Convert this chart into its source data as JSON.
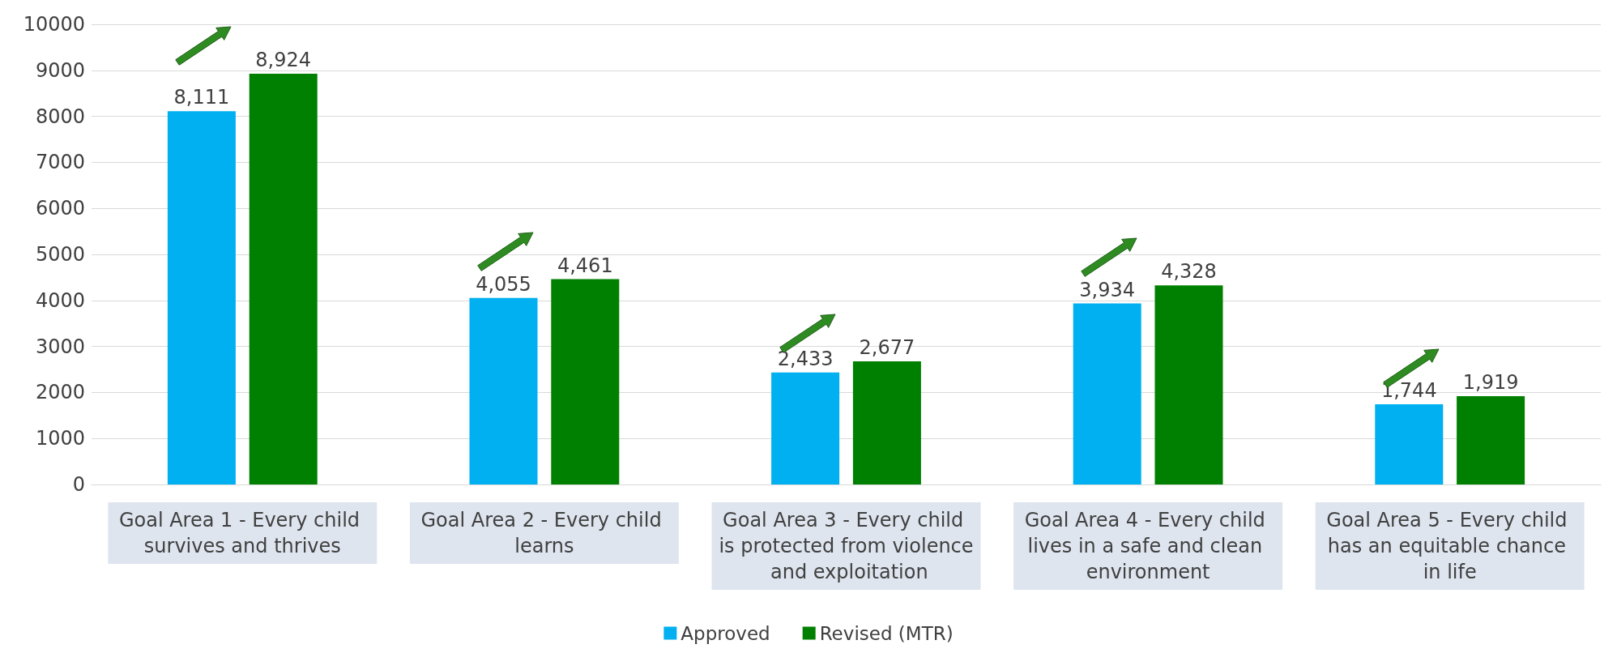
{
  "chart_data": {
    "type": "bar",
    "categories": [
      "Goal Area 1 - Every child survives and thrives",
      "Goal Area 2 - Every child learns",
      "Goal Area 3 - Every child is protected from violence and exploitation",
      "Goal Area 4 - Every child lives in a safe and clean environment",
      "Goal Area 5 - Every child has an equitable chance in life"
    ],
    "series": [
      {
        "name": "Approved",
        "color": "#00b0f0",
        "values": [
          8111,
          4055,
          2433,
          3934,
          1744
        ],
        "value_labels": [
          "8,111",
          "4,055",
          "2,433",
          "3,934",
          "1,744"
        ]
      },
      {
        "name": "Revised (MTR)",
        "color": "#008000",
        "values": [
          8924,
          4461,
          2677,
          4328,
          1919
        ],
        "value_labels": [
          "8,924",
          "4,461",
          "2,677",
          "4,328",
          "1,919"
        ]
      }
    ],
    "ylim": [
      0,
      10000
    ],
    "yticks": [
      0,
      1000,
      2000,
      3000,
      4000,
      5000,
      6000,
      7000,
      8000,
      9000,
      10000
    ],
    "grid": "y",
    "legend": "bottom"
  }
}
